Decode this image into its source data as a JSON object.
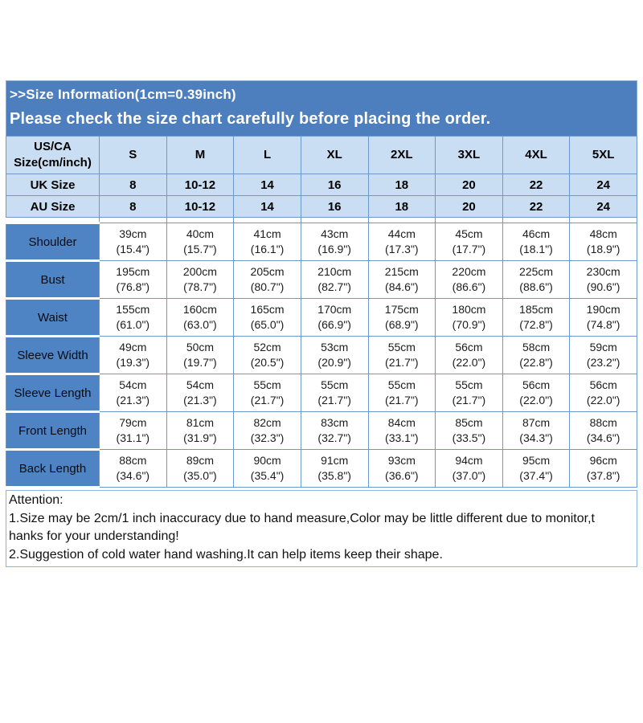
{
  "banner": {
    "line1": ">>Size Information(1cm=0.39inch)",
    "line2": "Please check the size chart carefully before placing the order."
  },
  "table": {
    "header": {
      "label_line1": "US/CA",
      "label_line2": "Size(cm/inch)",
      "sizes": [
        "S",
        "M",
        "L",
        "XL",
        "2XL",
        "3XL",
        "4XL",
        "5XL"
      ]
    },
    "uk": {
      "label": "UK Size",
      "values": [
        "8",
        "10-12",
        "14",
        "16",
        "18",
        "20",
        "22",
        "24"
      ]
    },
    "au": {
      "label": "AU Size",
      "values": [
        "8",
        "10-12",
        "14",
        "16",
        "18",
        "20",
        "22",
        "24"
      ]
    },
    "measurements": [
      {
        "label": "Shoulder",
        "cm": [
          "39cm",
          "40cm",
          "41cm",
          "43cm",
          "44cm",
          "45cm",
          "46cm",
          "48cm"
        ],
        "inch": [
          "(15.4\")",
          "(15.7\")",
          "(16.1\")",
          "(16.9\")",
          "(17.3\")",
          "(17.7\")",
          "(18.1\")",
          "(18.9\")"
        ]
      },
      {
        "label": "Bust",
        "cm": [
          "195cm",
          "200cm",
          "205cm",
          "210cm",
          "215cm",
          "220cm",
          "225cm",
          "230cm"
        ],
        "inch": [
          "(76.8\")",
          "(78.7\")",
          "(80.7\")",
          "(82.7\")",
          "(84.6\")",
          "(86.6\")",
          "(88.6\")",
          "(90.6\")"
        ]
      },
      {
        "label": "Waist",
        "cm": [
          "155cm",
          "160cm",
          "165cm",
          "170cm",
          "175cm",
          "180cm",
          "185cm",
          "190cm"
        ],
        "inch": [
          "(61.0\")",
          "(63.0\")",
          "(65.0\")",
          "(66.9\")",
          "(68.9\")",
          "(70.9\")",
          "(72.8\")",
          "(74.8\")"
        ]
      },
      {
        "label": "Sleeve Width",
        "cm": [
          "49cm",
          "50cm",
          "52cm",
          "53cm",
          "55cm",
          "56cm",
          "58cm",
          "59cm"
        ],
        "inch": [
          "(19.3\")",
          "(19.7\")",
          "(20.5\")",
          "(20.9\")",
          "(21.7\")",
          "(22.0\")",
          "(22.8\")",
          "(23.2\")"
        ]
      },
      {
        "label": "Sleeve Length",
        "cm": [
          "54cm",
          "54cm",
          "55cm",
          "55cm",
          "55cm",
          "55cm",
          "56cm",
          "56cm"
        ],
        "inch": [
          "(21.3\")",
          "(21.3\")",
          "(21.7\")",
          "(21.7\")",
          "(21.7\")",
          "(21.7\")",
          "(22.0\")",
          "(22.0\")"
        ]
      },
      {
        "label": "Front Length",
        "cm": [
          "79cm",
          "81cm",
          "82cm",
          "83cm",
          "84cm",
          "85cm",
          "87cm",
          "88cm"
        ],
        "inch": [
          "(31.1\")",
          "(31.9\")",
          "(32.3\")",
          "(32.7\")",
          "(33.1\")",
          "(33.5\")",
          "(34.3\")",
          "(34.6\")"
        ]
      },
      {
        "label": "Back Length",
        "cm": [
          "88cm",
          "89cm",
          "90cm",
          "91cm",
          "93cm",
          "94cm",
          "95cm",
          "96cm"
        ],
        "inch": [
          "(34.6\")",
          "(35.0\")",
          "(35.4\")",
          "(35.8\")",
          "(36.6\")",
          "(37.0\")",
          "(37.4\")",
          "(37.8\")"
        ]
      }
    ]
  },
  "attention": {
    "lines": [
      "Attention:",
      "1.Size may be 2cm/1 inch inaccuracy due to hand measure,Color may be little different due to monitor,t",
      "hanks for your understanding!",
      "2.Suggestion of cold water hand washing.It can help items keep their shape."
    ]
  },
  "colors": {
    "banner_blue": "#4d7ebe",
    "header_light_blue": "#c9def2",
    "label_blue": "#4e84c4",
    "grid_border_blue": "#6d98cb",
    "attention_border_blue": "#8ab4de",
    "banner_text": "#ffffff"
  }
}
